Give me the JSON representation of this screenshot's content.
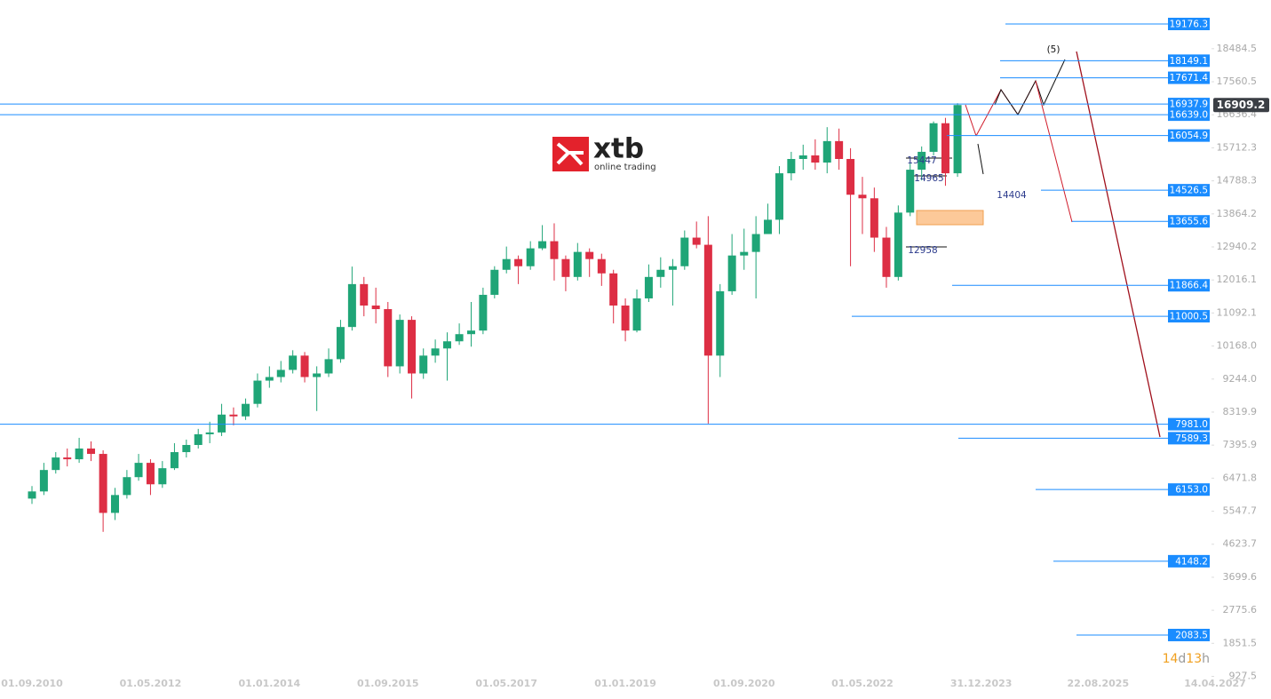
{
  "chart_data": {
    "type": "candlestick",
    "x": [
      "01.09.2010",
      "01.11.2010",
      "01.01.2011",
      "01.03.2011",
      "01.05.2011",
      "01.07.2011",
      "01.09.2011",
      "01.11.2011",
      "01.01.2012",
      "01.03.2012",
      "01.05.2012",
      "01.07.2012",
      "01.09.2012",
      "01.11.2012",
      "01.01.2013",
      "01.03.2013",
      "01.05.2013",
      "01.07.2013",
      "01.09.2013",
      "01.11.2013",
      "01.01.2014",
      "01.03.2014",
      "01.05.2014",
      "01.07.2014",
      "01.09.2014",
      "01.11.2014",
      "01.01.2015",
      "01.03.2015",
      "01.05.2015",
      "01.07.2015",
      "01.09.2015",
      "01.11.2015",
      "01.01.2016",
      "01.03.2016",
      "01.05.2016",
      "01.07.2016",
      "01.09.2016",
      "01.11.2016",
      "01.01.2017",
      "01.03.2017",
      "01.05.2017",
      "01.07.2017",
      "01.09.2017",
      "01.11.2017",
      "01.01.2018",
      "01.03.2018",
      "01.05.2018",
      "01.07.2018",
      "01.09.2018",
      "01.11.2018",
      "01.01.2019",
      "01.03.2019",
      "01.05.2019",
      "01.07.2019",
      "01.09.2019",
      "01.11.2019",
      "01.01.2020",
      "01.03.2020",
      "01.05.2020",
      "01.07.2020",
      "01.09.2020",
      "01.11.2020",
      "01.01.2021",
      "01.03.2021",
      "01.05.2021",
      "01.07.2021",
      "01.09.2021",
      "01.11.2021",
      "01.01.2022",
      "01.03.2022",
      "01.05.2022",
      "01.07.2022",
      "01.09.2022",
      "01.11.2022",
      "01.01.2023",
      "01.03.2023",
      "01.05.2023",
      "01.07.2023",
      "01.09.2023"
    ],
    "open": [
      5900,
      6100,
      6700,
      7050,
      7000,
      7300,
      7150,
      5500,
      6000,
      6500,
      6900,
      6300,
      6750,
      7200,
      7400,
      7700,
      7750,
      8250,
      8200,
      8550,
      9200,
      9300,
      9500,
      9900,
      9300,
      9400,
      9800,
      10700,
      11900,
      11300,
      11200,
      9600,
      10900,
      9400,
      9900,
      10100,
      10300,
      10500,
      10600,
      11600,
      12300,
      12600,
      12400,
      12900,
      13100,
      12600,
      12100,
      12800,
      12600,
      12200,
      11300,
      10600,
      11500,
      12100,
      12300,
      12400,
      13200,
      13000,
      9900,
      11700,
      12700,
      12800,
      13300,
      13700,
      15000,
      15400,
      15500,
      15300,
      15900,
      15400,
      14400,
      14300,
      13200,
      12100,
      13900,
      15100,
      15600,
      16400,
      15000
    ],
    "high": [
      6250,
      6900,
      7200,
      7300,
      7600,
      7500,
      7250,
      6200,
      6700,
      7150,
      7000,
      6950,
      7450,
      7550,
      7850,
      8050,
      8550,
      8450,
      8700,
      9400,
      9600,
      9750,
      10050,
      10000,
      9600,
      10100,
      10900,
      12390,
      12100,
      11800,
      11400,
      11050,
      11000,
      10100,
      10350,
      10550,
      10800,
      11400,
      11800,
      12400,
      12950,
      12700,
      13100,
      13550,
      13600,
      12700,
      13050,
      12900,
      12750,
      12300,
      11500,
      11750,
      12450,
      12650,
      12600,
      13400,
      13650,
      13800,
      11900,
      13300,
      13450,
      13800,
      14150,
      15200,
      15600,
      15800,
      15950,
      16290,
      16250,
      15700,
      14900,
      14600,
      13500,
      14100,
      15300,
      15750,
      16450,
      16550,
      16960
    ],
    "low": [
      5750,
      6000,
      6600,
      6800,
      6900,
      6950,
      4970,
      5300,
      5900,
      6400,
      6000,
      6200,
      6700,
      7050,
      7300,
      7450,
      7650,
      7950,
      8100,
      8450,
      9000,
      9150,
      9400,
      9150,
      8350,
      9300,
      9700,
      10600,
      11000,
      10800,
      9300,
      9400,
      8700,
      9250,
      9700,
      9200,
      10200,
      10150,
      10500,
      11500,
      12200,
      11900,
      12300,
      12850,
      12000,
      11700,
      12000,
      12100,
      11850,
      10800,
      10300,
      10550,
      11400,
      11800,
      11300,
      12300,
      12900,
      8000,
      9300,
      11600,
      12300,
      11500,
      13300,
      13300,
      14800,
      15100,
      15100,
      15000,
      15100,
      12400,
      13300,
      12800,
      11800,
      12000,
      13800,
      14800,
      15500,
      14650,
      14900
    ],
    "close": [
      6100,
      6700,
      7050,
      7000,
      7300,
      7150,
      5500,
      6000,
      6500,
      6900,
      6300,
      6750,
      7200,
      7400,
      7700,
      7750,
      8250,
      8200,
      8550,
      9200,
      9300,
      9500,
      9900,
      9300,
      9400,
      9800,
      10700,
      11900,
      11300,
      11200,
      9600,
      10900,
      9400,
      9900,
      10100,
      10300,
      10500,
      10600,
      11600,
      12300,
      12600,
      12400,
      12900,
      13100,
      12600,
      12100,
      12800,
      12600,
      12200,
      11300,
      10600,
      11500,
      12100,
      12300,
      12400,
      13200,
      13000,
      9900,
      11700,
      12700,
      12800,
      13300,
      13700,
      15000,
      15400,
      15500,
      15300,
      15900,
      15400,
      14400,
      14300,
      13200,
      12100,
      13900,
      15100,
      15600,
      16400,
      15000,
      16909.2
    ],
    "up_color": "#1fa577",
    "down_color": "#dd2e44",
    "xlim": [
      "01.09.2010",
      "14.04.2027"
    ],
    "xticks": [
      "01.09.2010",
      "01.05.2012",
      "01.01.2014",
      "01.09.2015",
      "01.05.2017",
      "01.01.2019",
      "01.09.2020",
      "01.05.2022",
      "31.12.2023",
      "22.08.2025",
      "14.04.2027"
    ],
    "ylim": [
      294,
      19847
    ],
    "yticks": [
      927.5,
      1851.5,
      2775.6,
      3699.6,
      4623.7,
      5547.7,
      6471.8,
      7395.9,
      8319.9,
      {
        "value": 9244,
        "label": "9244.0"
      },
      {
        "value": 10168,
        "label": "10168.0"
      },
      11092.1,
      12016.1,
      12940.2,
      13864.2,
      14788.3,
      15712.3,
      16636.4,
      17560.5,
      18484.5
    ],
    "levels": [
      19176.3,
      18149.1,
      17671.4,
      16937.9,
      {
        "value": 16639,
        "label": "16639.0"
      },
      16054.9,
      14526.5,
      13655.6,
      11866.4,
      11000.5,
      {
        "value": 7981,
        "label": "7981.0"
      },
      7589.3,
      {
        "value": 6153,
        "label": "6153.0"
      },
      4148.2,
      2083.5
    ],
    "level_color": "#1a8cff",
    "zone": [
      13561,
      13959
    ],
    "annotations": [
      "(5)",
      "15447",
      "14965",
      "14404",
      "12958"
    ],
    "countdown": [
      "14",
      "d",
      "13",
      "h"
    ]
  },
  "logo": {
    "name": "xtb",
    "tagline": "online trading"
  }
}
